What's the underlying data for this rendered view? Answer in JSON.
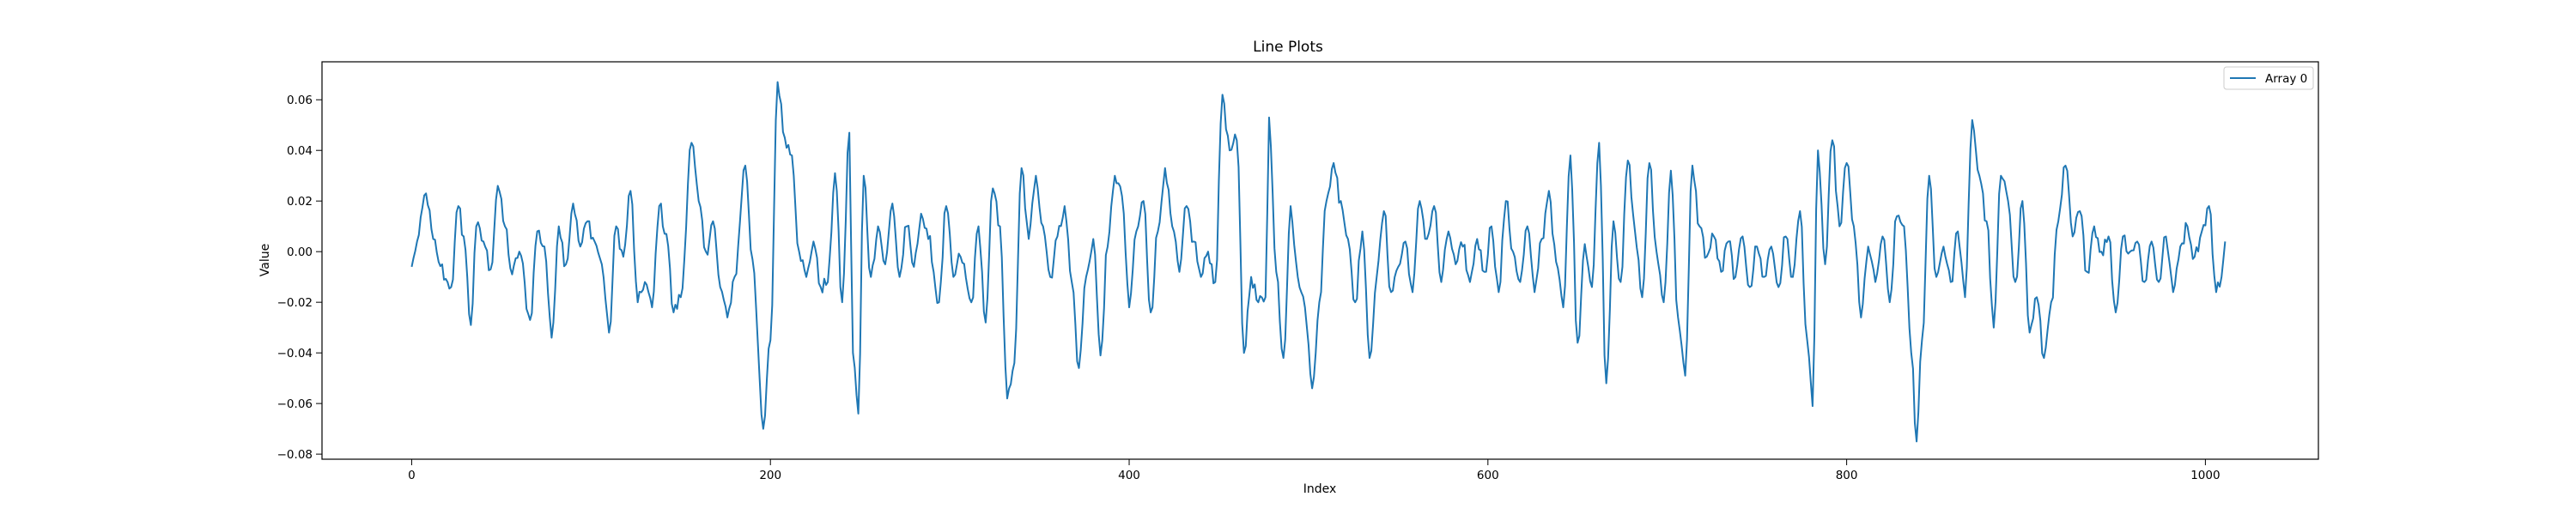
{
  "chart_data": {
    "type": "line",
    "title": "Line Plots",
    "xlabel": "Index",
    "ylabel": "Value",
    "xlim": [
      -50,
      1063
    ],
    "ylim": [
      -0.082,
      0.075
    ],
    "xticks": [
      0,
      200,
      400,
      600,
      800,
      1000
    ],
    "yticks": [
      -0.08,
      -0.06,
      -0.04,
      -0.02,
      0.0,
      0.02,
      0.04,
      0.06
    ],
    "ytick_labels": [
      "−0.08",
      "−0.06",
      "−0.04",
      "−0.02",
      "0.00",
      "0.02",
      "0.04",
      "0.06"
    ],
    "grid": false,
    "legend_position": "top-right",
    "series": [
      {
        "name": "Array 0",
        "color": "#1f77b4",
        "n_points": 1012,
        "anchor_points": [
          [
            0,
            -0.006
          ],
          [
            3,
            0.004
          ],
          [
            8,
            0.023
          ],
          [
            12,
            0.005
          ],
          [
            15,
            -0.004
          ],
          [
            20,
            -0.012
          ],
          [
            22,
            -0.014
          ],
          [
            26,
            0.018
          ],
          [
            29,
            0.006
          ],
          [
            33,
            -0.029
          ],
          [
            36,
            0.01
          ],
          [
            40,
            0.004
          ],
          [
            44,
            -0.007
          ],
          [
            48,
            0.026
          ],
          [
            52,
            0.01
          ],
          [
            56,
            -0.009
          ],
          [
            60,
            0.0
          ],
          [
            66,
            -0.027
          ],
          [
            70,
            0.008
          ],
          [
            74,
            0.002
          ],
          [
            78,
            -0.034
          ],
          [
            82,
            0.01
          ],
          [
            86,
            -0.005
          ],
          [
            90,
            0.019
          ],
          [
            94,
            0.002
          ],
          [
            98,
            0.012
          ],
          [
            102,
            0.004
          ],
          [
            106,
            -0.005
          ],
          [
            110,
            -0.032
          ],
          [
            114,
            0.01
          ],
          [
            118,
            -0.002
          ],
          [
            122,
            0.024
          ],
          [
            126,
            -0.02
          ],
          [
            130,
            -0.012
          ],
          [
            134,
            -0.022
          ],
          [
            138,
            0.018
          ],
          [
            142,
            0.007
          ],
          [
            146,
            -0.024
          ],
          [
            150,
            -0.018
          ],
          [
            156,
            0.043
          ],
          [
            160,
            0.02
          ],
          [
            164,
            0.0
          ],
          [
            168,
            0.012
          ],
          [
            172,
            -0.014
          ],
          [
            176,
            -0.026
          ],
          [
            180,
            -0.01
          ],
          [
            186,
            0.034
          ],
          [
            190,
            -0.003
          ],
          [
            196,
            -0.07
          ],
          [
            200,
            -0.035
          ],
          [
            204,
            0.067
          ],
          [
            208,
            0.045
          ],
          [
            212,
            0.038
          ],
          [
            216,
            0.0
          ],
          [
            220,
            -0.01
          ],
          [
            224,
            0.004
          ],
          [
            228,
            -0.014
          ],
          [
            232,
            -0.012
          ],
          [
            236,
            0.031
          ],
          [
            240,
            -0.02
          ],
          [
            244,
            0.047
          ],
          [
            246,
            -0.04
          ],
          [
            249,
            -0.064
          ],
          [
            252,
            0.03
          ],
          [
            256,
            -0.01
          ],
          [
            260,
            0.01
          ],
          [
            264,
            -0.005
          ],
          [
            268,
            0.019
          ],
          [
            272,
            -0.01
          ],
          [
            276,
            0.01
          ],
          [
            280,
            -0.006
          ],
          [
            284,
            0.015
          ],
          [
            288,
            0.005
          ],
          [
            294,
            -0.02
          ],
          [
            298,
            0.018
          ],
          [
            302,
            -0.01
          ],
          [
            306,
            -0.002
          ],
          [
            312,
            -0.02
          ],
          [
            316,
            0.01
          ],
          [
            320,
            -0.028
          ],
          [
            324,
            0.025
          ],
          [
            328,
            0.01
          ],
          [
            332,
            -0.058
          ],
          [
            336,
            -0.044
          ],
          [
            340,
            0.033
          ],
          [
            344,
            0.005
          ],
          [
            348,
            0.03
          ],
          [
            352,
            0.01
          ],
          [
            356,
            -0.01
          ],
          [
            360,
            0.006
          ],
          [
            364,
            0.018
          ],
          [
            368,
            -0.012
          ],
          [
            372,
            -0.046
          ],
          [
            376,
            -0.01
          ],
          [
            380,
            0.005
          ],
          [
            384,
            -0.041
          ],
          [
            388,
            0.002
          ],
          [
            392,
            0.03
          ],
          [
            396,
            0.022
          ],
          [
            400,
            -0.022
          ],
          [
            404,
            0.008
          ],
          [
            408,
            0.02
          ],
          [
            412,
            -0.024
          ],
          [
            416,
            0.008
          ],
          [
            420,
            0.033
          ],
          [
            424,
            0.01
          ],
          [
            428,
            -0.008
          ],
          [
            432,
            0.018
          ],
          [
            436,
            0.004
          ],
          [
            440,
            -0.01
          ],
          [
            444,
            0.0
          ],
          [
            448,
            -0.012
          ],
          [
            452,
            0.062
          ],
          [
            456,
            0.04
          ],
          [
            460,
            0.044
          ],
          [
            464,
            -0.04
          ],
          [
            468,
            -0.01
          ],
          [
            472,
            -0.02
          ],
          [
            476,
            -0.018
          ],
          [
            478,
            0.053
          ],
          [
            482,
            -0.008
          ],
          [
            486,
            -0.042
          ],
          [
            490,
            0.018
          ],
          [
            494,
            -0.01
          ],
          [
            498,
            -0.022
          ],
          [
            502,
            -0.054
          ],
          [
            506,
            -0.02
          ],
          [
            510,
            0.02
          ],
          [
            514,
            0.035
          ],
          [
            518,
            0.02
          ],
          [
            522,
            0.005
          ],
          [
            526,
            -0.02
          ],
          [
            530,
            0.008
          ],
          [
            534,
            -0.042
          ],
          [
            538,
            -0.01
          ],
          [
            542,
            0.016
          ],
          [
            546,
            -0.016
          ],
          [
            550,
            -0.006
          ],
          [
            554,
            0.004
          ],
          [
            558,
            -0.016
          ],
          [
            562,
            0.02
          ],
          [
            566,
            0.005
          ],
          [
            570,
            0.018
          ],
          [
            574,
            -0.012
          ],
          [
            578,
            0.008
          ],
          [
            582,
            -0.005
          ],
          [
            586,
            0.002
          ],
          [
            590,
            -0.012
          ],
          [
            594,
            0.005
          ],
          [
            598,
            -0.008
          ],
          [
            602,
            0.01
          ],
          [
            606,
            -0.016
          ],
          [
            610,
            0.02
          ],
          [
            614,
            0.0
          ],
          [
            618,
            -0.012
          ],
          [
            622,
            0.01
          ],
          [
            626,
            -0.016
          ],
          [
            630,
            0.005
          ],
          [
            634,
            0.024
          ],
          [
            638,
            -0.004
          ],
          [
            642,
            -0.022
          ],
          [
            646,
            0.038
          ],
          [
            650,
            -0.036
          ],
          [
            654,
            0.003
          ],
          [
            658,
            -0.014
          ],
          [
            662,
            0.043
          ],
          [
            666,
            -0.052
          ],
          [
            670,
            0.012
          ],
          [
            674,
            -0.012
          ],
          [
            678,
            0.036
          ],
          [
            682,
            0.008
          ],
          [
            686,
            -0.018
          ],
          [
            690,
            0.035
          ],
          [
            694,
            0.0
          ],
          [
            698,
            -0.02
          ],
          [
            702,
            0.032
          ],
          [
            706,
            -0.026
          ],
          [
            710,
            -0.049
          ],
          [
            714,
            0.034
          ],
          [
            718,
            0.01
          ],
          [
            722,
            -0.002
          ],
          [
            726,
            0.006
          ],
          [
            730,
            -0.008
          ],
          [
            734,
            0.004
          ],
          [
            738,
            -0.01
          ],
          [
            742,
            0.006
          ],
          [
            746,
            -0.014
          ],
          [
            750,
            0.002
          ],
          [
            754,
            -0.01
          ],
          [
            758,
            0.002
          ],
          [
            762,
            -0.014
          ],
          [
            766,
            0.006
          ],
          [
            770,
            -0.01
          ],
          [
            774,
            0.016
          ],
          [
            778,
            -0.035
          ],
          [
            781,
            -0.061
          ],
          [
            784,
            0.04
          ],
          [
            788,
            -0.005
          ],
          [
            792,
            0.044
          ],
          [
            796,
            0.01
          ],
          [
            800,
            0.035
          ],
          [
            804,
            0.01
          ],
          [
            808,
            -0.026
          ],
          [
            812,
            0.002
          ],
          [
            816,
            -0.012
          ],
          [
            820,
            0.006
          ],
          [
            824,
            -0.02
          ],
          [
            828,
            0.014
          ],
          [
            832,
            0.01
          ],
          [
            836,
            -0.04
          ],
          [
            839,
            -0.075
          ],
          [
            842,
            -0.035
          ],
          [
            846,
            0.03
          ],
          [
            850,
            -0.01
          ],
          [
            854,
            0.002
          ],
          [
            858,
            -0.012
          ],
          [
            862,
            0.008
          ],
          [
            866,
            -0.018
          ],
          [
            870,
            0.052
          ],
          [
            874,
            0.03
          ],
          [
            878,
            0.012
          ],
          [
            882,
            -0.03
          ],
          [
            886,
            0.03
          ],
          [
            890,
            0.02
          ],
          [
            894,
            -0.012
          ],
          [
            898,
            0.02
          ],
          [
            902,
            -0.032
          ],
          [
            906,
            -0.018
          ],
          [
            910,
            -0.042
          ],
          [
            914,
            -0.02
          ],
          [
            918,
            0.012
          ],
          [
            922,
            0.034
          ],
          [
            926,
            0.006
          ],
          [
            930,
            0.016
          ],
          [
            934,
            -0.008
          ],
          [
            938,
            0.01
          ],
          [
            942,
            0.0
          ],
          [
            946,
            0.006
          ],
          [
            950,
            -0.024
          ],
          [
            954,
            0.006
          ],
          [
            958,
            0.0
          ],
          [
            962,
            0.004
          ],
          [
            966,
            -0.012
          ],
          [
            970,
            0.004
          ],
          [
            974,
            -0.012
          ],
          [
            978,
            0.006
          ],
          [
            982,
            -0.016
          ],
          [
            986,
            0.002
          ],
          [
            990,
            0.01
          ],
          [
            994,
            -0.002
          ],
          [
            998,
            0.008
          ],
          [
            1002,
            0.018
          ],
          [
            1006,
            -0.016
          ],
          [
            1009,
            -0.01
          ],
          [
            1011,
            0.004
          ]
        ]
      }
    ]
  }
}
